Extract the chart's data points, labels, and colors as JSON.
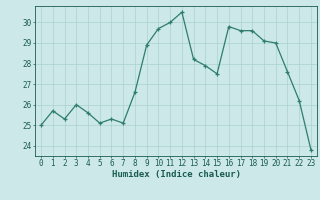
{
  "x": [
    0,
    1,
    2,
    3,
    4,
    5,
    6,
    7,
    8,
    9,
    10,
    11,
    12,
    13,
    14,
    15,
    16,
    17,
    18,
    19,
    20,
    21,
    22,
    23
  ],
  "y": [
    25.0,
    25.7,
    25.3,
    26.0,
    25.6,
    25.1,
    25.3,
    25.1,
    26.6,
    28.9,
    29.7,
    30.0,
    30.5,
    28.2,
    27.9,
    27.5,
    29.8,
    29.6,
    29.6,
    29.1,
    29.0,
    27.6,
    26.2,
    23.8
  ],
  "xlim": [
    -0.5,
    23.5
  ],
  "ylim": [
    23.5,
    30.8
  ],
  "yticks": [
    24,
    25,
    26,
    27,
    28,
    29,
    30
  ],
  "xticks": [
    0,
    1,
    2,
    3,
    4,
    5,
    6,
    7,
    8,
    9,
    10,
    11,
    12,
    13,
    14,
    15,
    16,
    17,
    18,
    19,
    20,
    21,
    22,
    23
  ],
  "xlabel": "Humidex (Indice chaleur)",
  "line_color": "#2e7d6e",
  "marker": "+",
  "bg_color": "#cce8e8",
  "grid_color": "#aad0d0",
  "tick_color": "#1a5c50",
  "label_color": "#1a5c50",
  "font_size_ticks": 5.5,
  "font_size_xlabel": 6.5,
  "linewidth": 0.9,
  "markersize": 3.5,
  "markeredgewidth": 0.9
}
